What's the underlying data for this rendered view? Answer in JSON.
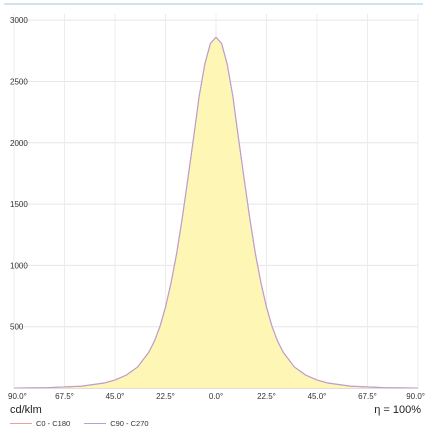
{
  "chart_data": {
    "type": "area",
    "xlabel": "",
    "ylabel": "",
    "x_tick_labels": [
      "90.0°",
      "67.5°",
      "45.0°",
      "22.5°",
      "0.0°",
      "22.5°",
      "45.0°",
      "67.5°",
      "90.0°"
    ],
    "x_tick_values": [
      -90,
      -67.5,
      -45,
      -22.5,
      0,
      22.5,
      45,
      67.5,
      90
    ],
    "y_tick_labels": [
      "500",
      "1000",
      "1500",
      "2000",
      "2500",
      "3000"
    ],
    "y_tick_values": [
      500,
      1000,
      1500,
      2000,
      2500,
      3000
    ],
    "xlim": [
      -90,
      90
    ],
    "ylim": [
      0,
      3050
    ],
    "grid": true,
    "unit_label": "cd/klm",
    "efficiency_label": "η = 100%",
    "fill_color": "#fdf6b4",
    "series": [
      {
        "name": "C0 - C180",
        "color": "#e8a0a0",
        "x": [
          -90,
          -75,
          -60,
          -50,
          -45,
          -40,
          -35,
          -30,
          -27.5,
          -25,
          -22.5,
          -20,
          -17.5,
          -15,
          -12.5,
          -10,
          -7.5,
          -5,
          -2.5,
          0,
          2.5,
          5,
          7.5,
          10,
          12.5,
          15,
          17.5,
          20,
          22.5,
          25,
          27.5,
          30,
          35,
          40,
          45,
          50,
          60,
          75,
          90
        ],
        "y": [
          0,
          3,
          15,
          40,
          65,
          105,
          170,
          290,
          380,
          500,
          660,
          860,
          1100,
          1390,
          1710,
          2040,
          2380,
          2640,
          2810,
          2860,
          2810,
          2640,
          2380,
          2040,
          1710,
          1390,
          1100,
          860,
          660,
          500,
          380,
          290,
          170,
          105,
          65,
          40,
          15,
          3,
          0
        ]
      },
      {
        "name": "C90 - C270",
        "color": "#b8a0d0",
        "x": [
          -90,
          -75,
          -60,
          -50,
          -45,
          -40,
          -35,
          -30,
          -27.5,
          -25,
          -22.5,
          -20,
          -17.5,
          -15,
          -12.5,
          -10,
          -7.5,
          -5,
          -2.5,
          0,
          2.5,
          5,
          7.5,
          10,
          12.5,
          15,
          17.5,
          20,
          22.5,
          25,
          27.5,
          30,
          35,
          40,
          45,
          50,
          60,
          75,
          90
        ],
        "y": [
          0,
          3,
          15,
          40,
          65,
          105,
          170,
          290,
          380,
          500,
          660,
          860,
          1100,
          1390,
          1710,
          2040,
          2380,
          2640,
          2810,
          2860,
          2810,
          2640,
          2380,
          2040,
          1710,
          1390,
          1100,
          860,
          660,
          500,
          380,
          290,
          170,
          105,
          65,
          40,
          15,
          3,
          0
        ]
      }
    ]
  }
}
